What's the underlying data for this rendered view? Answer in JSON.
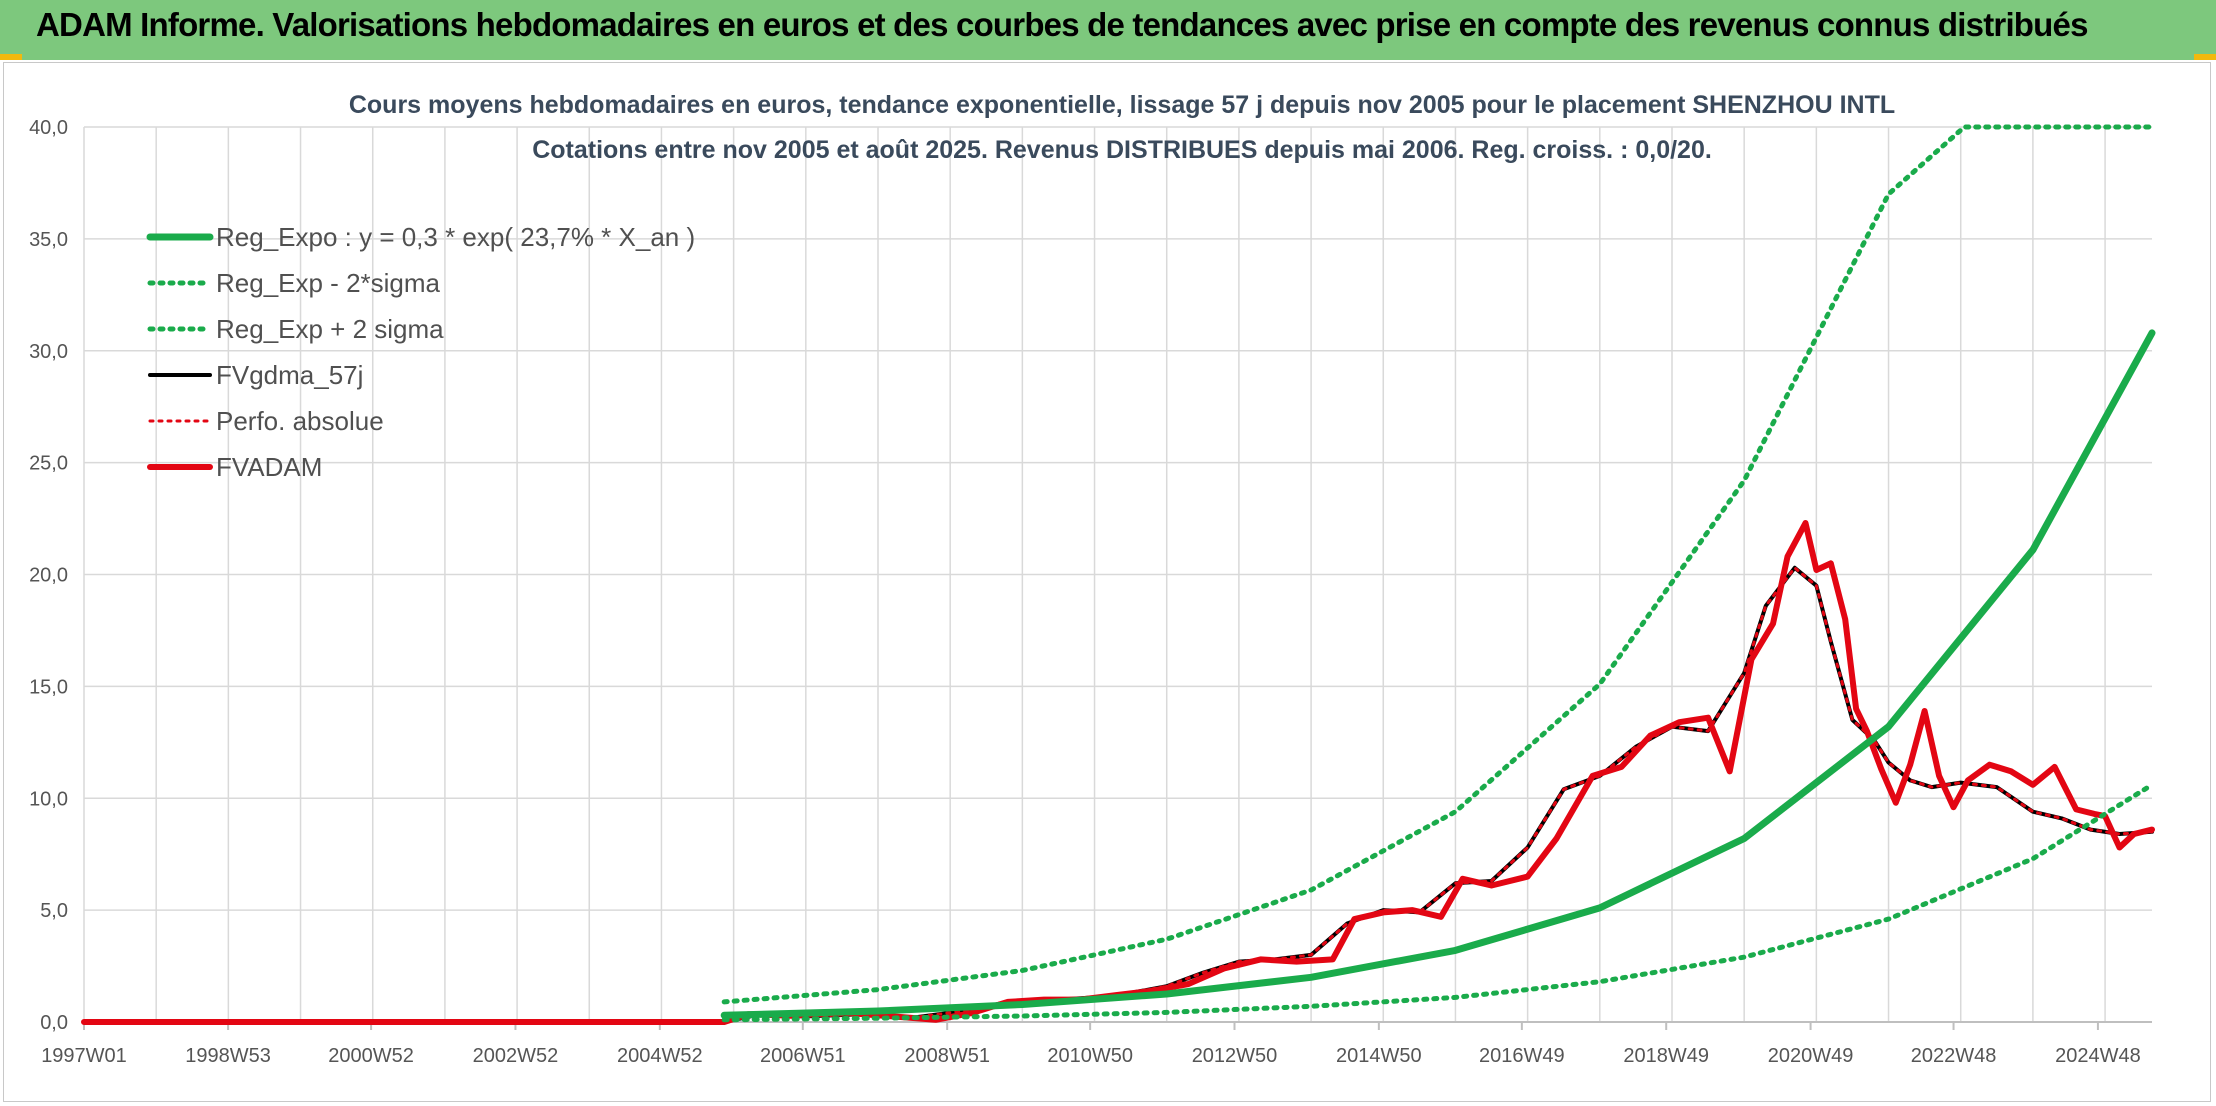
{
  "banner": {
    "title": "ADAM Informe. Valorisations hebdomadaires en euros et des courbes de tendances avec prise en compte des revenus connus distribués",
    "color": "#7dc87d"
  },
  "chart_data": {
    "type": "line",
    "title_line1": "Cours moyens hebdomadaires en euros, tendance exponentielle, lissage 57 j depuis nov 2005 pour le placement SHENZHOU INTL",
    "title_line2": "Cotations entre nov 2005 et août 2025. Revenus DISTRIBUES depuis mai 2006. Reg. croiss. : 0,0/20.",
    "xlabel": "",
    "ylabel": "",
    "x_ticks": [
      "1997W01",
      "1998W53",
      "2000W52",
      "2002W52",
      "2004W52",
      "2006W51",
      "2008W51",
      "2010W50",
      "2012W50",
      "2014W50",
      "2016W49",
      "2018W49",
      "2020W49",
      "2022W48",
      "2024W48"
    ],
    "x_range": [
      "1997W01",
      "2025W35"
    ],
    "ylim": [
      0,
      40
    ],
    "y_ticks": [
      "0,0",
      "5,0",
      "10,0",
      "15,0",
      "20,0",
      "25,0",
      "30,0",
      "35,0",
      "40,0"
    ],
    "grid": true,
    "legend_position": "top-left",
    "series": [
      {
        "name": "Reg_Expo : y = 0,3 * exp( 23,7% *  X_an )",
        "color": "#1aab4b",
        "style": "solid",
        "x": [
          2005.87,
          2008,
          2010,
          2012,
          2014,
          2016,
          2018,
          2020,
          2022,
          2024,
          2025.65
        ],
        "y": [
          0.3,
          0.49,
          0.78,
          1.25,
          2.0,
          3.2,
          5.1,
          8.2,
          13.2,
          21.1,
          30.8
        ]
      },
      {
        "name": "Reg_Exp - 2*sigma",
        "color": "#1aab4b",
        "style": "dotted",
        "x": [
          2005.87,
          2008,
          2010,
          2012,
          2014,
          2016,
          2018,
          2020,
          2022,
          2024,
          2025.65
        ],
        "y": [
          0.1,
          0.17,
          0.27,
          0.43,
          0.7,
          1.1,
          1.8,
          2.9,
          4.6,
          7.3,
          10.6
        ]
      },
      {
        "name": "Reg_Exp + 2 sigma",
        "color": "#1aab4b",
        "style": "dotted",
        "x": [
          2005.87,
          2008,
          2010,
          2012,
          2014,
          2016,
          2018,
          2020,
          2022,
          2023.05,
          2025.65
        ],
        "y": [
          0.9,
          1.45,
          2.3,
          3.7,
          5.9,
          9.4,
          15.1,
          24.2,
          37.0,
          40,
          40
        ]
      },
      {
        "name": "FVgdma_57j",
        "color": "#000000",
        "style": "solid",
        "x": [
          1997.0,
          2005.87,
          2006.3,
          2007,
          2007.8,
          2008.5,
          2009.2,
          2009.8,
          2010.5,
          2011,
          2011.5,
          2012,
          2012.5,
          2013,
          2013.5,
          2014,
          2014.5,
          2015,
          2015.5,
          2016,
          2016.5,
          2017,
          2017.5,
          2018,
          2018.5,
          2019,
          2019.5,
          2020,
          2020.3,
          2020.7,
          2021,
          2021.2,
          2021.5,
          2021.8,
          2022,
          2022.3,
          2022.6,
          2023,
          2023.5,
          2024,
          2024.4,
          2024.8,
          2025.2,
          2025.65
        ],
        "y": [
          0,
          0,
          0.3,
          0.25,
          0.35,
          0.2,
          0.5,
          0.9,
          1.0,
          1.1,
          1.3,
          1.6,
          2.2,
          2.7,
          2.8,
          3.0,
          4.4,
          5.0,
          4.9,
          6.2,
          6.3,
          7.8,
          10.4,
          11.0,
          12.3,
          13.2,
          13.0,
          15.6,
          18.6,
          20.3,
          19.5,
          17.0,
          13.5,
          12.6,
          11.6,
          10.8,
          10.5,
          10.7,
          10.5,
          9.4,
          9.1,
          8.6,
          8.4,
          8.5
        ]
      },
      {
        "name": "Perfo. absolue",
        "color": "#e30613",
        "style": "dotted",
        "x": [
          1997.0,
          2005.87,
          2006.3,
          2007,
          2007.8,
          2008.5,
          2009.2,
          2009.8,
          2010.5,
          2011,
          2011.5,
          2012,
          2012.5,
          2013,
          2013.5,
          2014,
          2014.5,
          2015,
          2015.5,
          2016,
          2016.5,
          2017,
          2017.5,
          2018,
          2018.5,
          2019,
          2019.5,
          2020,
          2020.3,
          2020.7,
          2021,
          2021.2,
          2021.5,
          2021.8,
          2022,
          2022.3,
          2022.6,
          2023,
          2023.5,
          2024,
          2024.4,
          2024.8,
          2025.2,
          2025.65
        ],
        "y": [
          0,
          0,
          0.3,
          0.25,
          0.35,
          0.2,
          0.5,
          0.9,
          1.0,
          1.1,
          1.3,
          1.6,
          2.2,
          2.7,
          2.8,
          3.0,
          4.4,
          5.0,
          4.9,
          6.2,
          6.3,
          7.8,
          10.4,
          11.0,
          12.3,
          13.2,
          13.0,
          15.6,
          18.6,
          20.3,
          19.5,
          17.0,
          13.5,
          12.6,
          11.6,
          10.8,
          10.5,
          10.7,
          10.5,
          9.4,
          9.1,
          8.6,
          8.4,
          8.5
        ]
      },
      {
        "name": "FVADAM",
        "color": "#e30613",
        "style": "solid",
        "x": [
          1997.0,
          2005.87,
          2006.2,
          2006.8,
          2007.5,
          2008.2,
          2008.8,
          2009.3,
          2009.8,
          2010.3,
          2010.8,
          2011.3,
          2011.8,
          2012.3,
          2012.8,
          2013.3,
          2013.8,
          2014.3,
          2014.6,
          2015.0,
          2015.4,
          2015.8,
          2016.1,
          2016.5,
          2017.0,
          2017.4,
          2017.9,
          2018.3,
          2018.7,
          2019.1,
          2019.5,
          2019.8,
          2020.1,
          2020.4,
          2020.6,
          2020.85,
          2021.0,
          2021.2,
          2021.4,
          2021.55,
          2021.7,
          2021.9,
          2022.1,
          2022.3,
          2022.5,
          2022.7,
          2022.9,
          2023.1,
          2023.4,
          2023.7,
          2024.0,
          2024.3,
          2024.6,
          2024.85,
          2025.0,
          2025.2,
          2025.4,
          2025.65
        ],
        "y": [
          0,
          0,
          0.35,
          0.28,
          0.42,
          0.25,
          0.1,
          0.4,
          0.9,
          1.0,
          1.0,
          1.2,
          1.4,
          1.7,
          2.4,
          2.8,
          2.7,
          2.8,
          4.6,
          4.9,
          5.0,
          4.7,
          6.4,
          6.1,
          6.5,
          8.2,
          11.0,
          11.4,
          12.8,
          13.4,
          13.6,
          11.2,
          16.2,
          17.8,
          20.8,
          22.3,
          20.2,
          20.5,
          18.0,
          14.0,
          13.0,
          11.3,
          9.8,
          11.5,
          13.9,
          11.0,
          9.6,
          10.8,
          11.5,
          11.2,
          10.6,
          11.4,
          9.5,
          9.3,
          9.2,
          7.8,
          8.4,
          8.6
        ]
      }
    ]
  }
}
